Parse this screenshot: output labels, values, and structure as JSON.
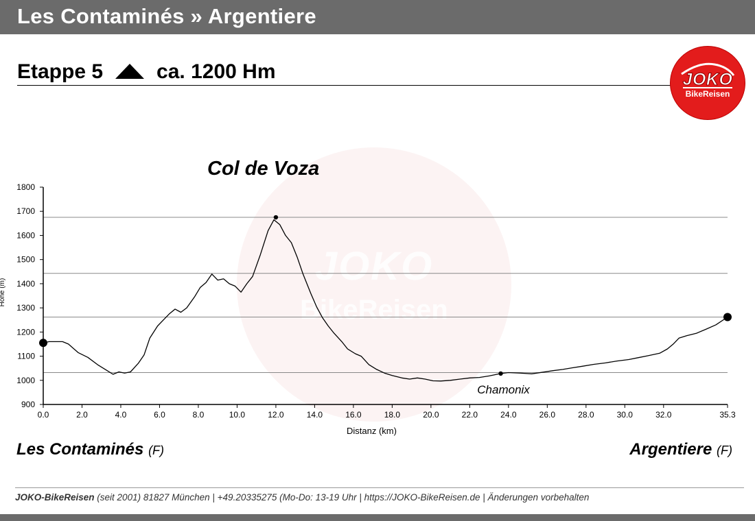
{
  "header": {
    "title": "Les Contaminés » Argentiere"
  },
  "stage": {
    "label": "Etappe 5",
    "ascent": "ca. 1200 Hm",
    "icon": "triangle-up-icon"
  },
  "logo": {
    "brand": "JOKO",
    "sub": "BikeReisen",
    "color": "#e31c1c",
    "watermark_brand": "JOKO",
    "watermark_sub": "BikeReisen"
  },
  "annotations": {
    "pass": "Col de Voza",
    "town": "Chamonix"
  },
  "places": {
    "start": {
      "name": "Les Contaminés",
      "country": "(F)"
    },
    "end": {
      "name": "Argentiere",
      "country": "(F)"
    }
  },
  "footer": {
    "brand": "JOKO-BikeReisen",
    "text": " (seit 2001)  81827 München  |  +49.20335275 (Mo-Do: 13-19 Uhr  |  https://JOKO-BikeReisen.de  |  Änderungen vorbehalten"
  },
  "chart_data": {
    "type": "line",
    "xlabel": "Distanz   (km)",
    "ylabel": "Höhe (m)",
    "xlim": [
      0,
      35.3
    ],
    "ylim": [
      900,
      1800
    ],
    "x_ticks": [
      0,
      2,
      4,
      6,
      8,
      10,
      12,
      14,
      16,
      18,
      20,
      22,
      24,
      26,
      28,
      30,
      32,
      35.3
    ],
    "x_tick_labels": [
      "0.0",
      "2.0",
      "4.0",
      "6.0",
      "8.0",
      "10.0",
      "12.0",
      "14.0",
      "16.0",
      "18.0",
      "20.0",
      "22.0",
      "24.0",
      "26.0",
      "28.0",
      "30.0",
      "32.0",
      "35.3"
    ],
    "y_ticks": [
      900,
      1000,
      1100,
      1200,
      1300,
      1400,
      1500,
      1600,
      1700,
      1800
    ],
    "y_tick_labels": [
      "900",
      "1000",
      "1100",
      "1200",
      "1300",
      "1400",
      "1500",
      "1600",
      "1700",
      "1800"
    ],
    "reference_lines_y": [
      1675,
      1443,
      1262,
      1032
    ],
    "series": [
      {
        "x": [
          0,
          0.3,
          1.0,
          1.3,
          1.8,
          2.3,
          2.8,
          3.3,
          3.6,
          3.9,
          4.2,
          4.5,
          4.9,
          5.2,
          5.5,
          5.9,
          6.2,
          6.5,
          6.8,
          7.1,
          7.4,
          7.8,
          8.1,
          8.4,
          8.7,
          9.0,
          9.3,
          9.6,
          9.9,
          10.2,
          10.5,
          10.8,
          11.2,
          11.6,
          11.9,
          12.2,
          12.5,
          12.8,
          13.1,
          13.4,
          13.8,
          14.1,
          14.4,
          14.7,
          15.0,
          15.4,
          15.7,
          16.1,
          16.4,
          16.8,
          17.2,
          17.6,
          18.0,
          18.5,
          18.9,
          19.3,
          19.7,
          20.1,
          20.5,
          21.0,
          21.5,
          22.0,
          22.5,
          23.0,
          23.6,
          24.0,
          24.6,
          25.2,
          25.8,
          26.3,
          26.8,
          27.3,
          27.8,
          28.4,
          29.0,
          29.6,
          30.2,
          30.7,
          31.2,
          31.8,
          32.2,
          32.5,
          32.8,
          33.2,
          33.7,
          34.2,
          34.7,
          35.3
        ],
        "y": [
          1155,
          1160,
          1160,
          1150,
          1115,
          1095,
          1065,
          1040,
          1025,
          1035,
          1030,
          1035,
          1070,
          1105,
          1175,
          1225,
          1250,
          1275,
          1295,
          1282,
          1300,
          1345,
          1385,
          1405,
          1440,
          1415,
          1420,
          1400,
          1390,
          1365,
          1400,
          1430,
          1520,
          1620,
          1665,
          1645,
          1600,
          1570,
          1510,
          1440,
          1360,
          1305,
          1260,
          1225,
          1195,
          1160,
          1130,
          1110,
          1100,
          1065,
          1045,
          1030,
          1020,
          1010,
          1005,
          1010,
          1005,
          998,
          997,
          1000,
          1005,
          1010,
          1012,
          1018,
          1028,
          1032,
          1030,
          1027,
          1034,
          1040,
          1045,
          1052,
          1058,
          1066,
          1072,
          1080,
          1086,
          1094,
          1102,
          1112,
          1130,
          1150,
          1175,
          1185,
          1195,
          1212,
          1230,
          1262
        ]
      }
    ],
    "markers": [
      {
        "x": 0,
        "y": 1155,
        "size": "large"
      },
      {
        "x": 12.0,
        "y": 1675,
        "size": "small"
      },
      {
        "x": 23.6,
        "y": 1028,
        "size": "small"
      },
      {
        "x": 35.3,
        "y": 1262,
        "size": "large"
      }
    ],
    "grid": false
  }
}
